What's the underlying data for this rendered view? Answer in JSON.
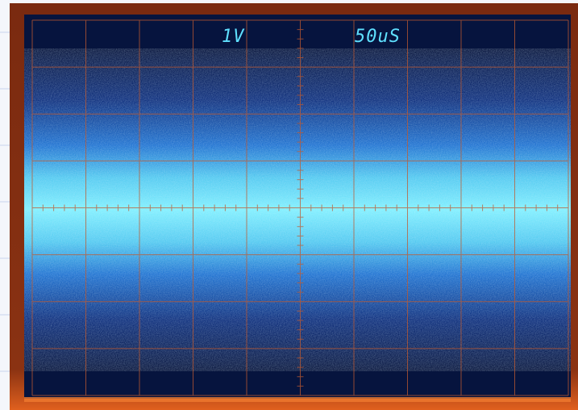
{
  "screen": {
    "volts_per_div": "1V",
    "time_per_div": "50uS"
  }
}
